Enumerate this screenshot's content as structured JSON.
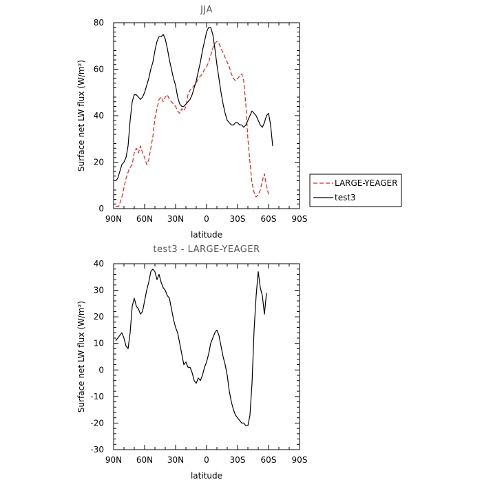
{
  "chart_data": [
    {
      "type": "line",
      "title": "JJA",
      "xlabel": "latitude",
      "ylabel": "Surface net LW flux (W/m²)",
      "x_ticks": [
        "90N",
        "60N",
        "30N",
        "0",
        "30S",
        "60S",
        "90S"
      ],
      "x_tick_values": [
        90,
        60,
        30,
        0,
        -30,
        -60,
        -90
      ],
      "xlim": [
        90,
        -90
      ],
      "ylim": [
        0,
        80
      ],
      "y_ticks": [
        0,
        20,
        40,
        60,
        80
      ],
      "legend": {
        "placement": "outside-right",
        "entries": [
          "LARGE-YEAGER",
          "test3"
        ]
      },
      "series": [
        {
          "name": "LARGE-YEAGER",
          "color": "#e02020",
          "style": "dashed",
          "points": [
            [
              88,
              1
            ],
            [
              85,
              1
            ],
            [
              82,
              5
            ],
            [
              80,
              9
            ],
            [
              78,
              13
            ],
            [
              75,
              17
            ],
            [
              72,
              19
            ],
            [
              70,
              24
            ],
            [
              68,
              26
            ],
            [
              66,
              24
            ],
            [
              64,
              27
            ],
            [
              62,
              24
            ],
            [
              60,
              22
            ],
            [
              58,
              19
            ],
            [
              56,
              21
            ],
            [
              54,
              26
            ],
            [
              52,
              31
            ],
            [
              50,
              39
            ],
            [
              48,
              43
            ],
            [
              46,
              47
            ],
            [
              44,
              48
            ],
            [
              42,
              46
            ],
            [
              40,
              48
            ],
            [
              38,
              49
            ],
            [
              36,
              47
            ],
            [
              34,
              46
            ],
            [
              32,
              45
            ],
            [
              30,
              44
            ],
            [
              28,
              42
            ],
            [
              26,
              41
            ],
            [
              24,
              43
            ],
            [
              22,
              42
            ],
            [
              20,
              44
            ],
            [
              18,
              49
            ],
            [
              16,
              51
            ],
            [
              14,
              52
            ],
            [
              12,
              53
            ],
            [
              10,
              54
            ],
            [
              8,
              56
            ],
            [
              6,
              57
            ],
            [
              4,
              58
            ],
            [
              2,
              60
            ],
            [
              0,
              61
            ],
            [
              -2,
              63
            ],
            [
              -4,
              66
            ],
            [
              -6,
              69
            ],
            [
              -8,
              71
            ],
            [
              -10,
              72
            ],
            [
              -12,
              71
            ],
            [
              -14,
              69
            ],
            [
              -16,
              67
            ],
            [
              -18,
              65
            ],
            [
              -20,
              63
            ],
            [
              -22,
              61
            ],
            [
              -24,
              58
            ],
            [
              -26,
              56
            ],
            [
              -28,
              55
            ],
            [
              -30,
              56
            ],
            [
              -32,
              57
            ],
            [
              -34,
              58
            ],
            [
              -36,
              55
            ],
            [
              -38,
              45
            ],
            [
              -40,
              30
            ],
            [
              -42,
              20
            ],
            [
              -44,
              11
            ],
            [
              -46,
              7
            ],
            [
              -48,
              5
            ],
            [
              -50,
              6
            ],
            [
              -52,
              8
            ],
            [
              -54,
              12
            ],
            [
              -56,
              15
            ],
            [
              -58,
              10
            ],
            [
              -60,
              6
            ]
          ]
        },
        {
          "name": "test3",
          "color": "#000000",
          "style": "solid",
          "points": [
            [
              88,
              12
            ],
            [
              86,
              13
            ],
            [
              84,
              16
            ],
            [
              82,
              19
            ],
            [
              80,
              20
            ],
            [
              78,
              22
            ],
            [
              76,
              27
            ],
            [
              74,
              38
            ],
            [
              72,
              46
            ],
            [
              70,
              49
            ],
            [
              68,
              49
            ],
            [
              66,
              48
            ],
            [
              64,
              47
            ],
            [
              62,
              48
            ],
            [
              60,
              50
            ],
            [
              58,
              53
            ],
            [
              56,
              56
            ],
            [
              54,
              60
            ],
            [
              52,
              63
            ],
            [
              50,
              68
            ],
            [
              48,
              72
            ],
            [
              46,
              74
            ],
            [
              44,
              74
            ],
            [
              42,
              75
            ],
            [
              40,
              73
            ],
            [
              38,
              69
            ],
            [
              36,
              64
            ],
            [
              34,
              60
            ],
            [
              32,
              56
            ],
            [
              30,
              53
            ],
            [
              28,
              48
            ],
            [
              26,
              45
            ],
            [
              24,
              44
            ],
            [
              22,
              44
            ],
            [
              20,
              45
            ],
            [
              18,
              46
            ],
            [
              16,
              47
            ],
            [
              14,
              49
            ],
            [
              12,
              52
            ],
            [
              10,
              55
            ],
            [
              8,
              59
            ],
            [
              6,
              63
            ],
            [
              4,
              68
            ],
            [
              2,
              72
            ],
            [
              0,
              76
            ],
            [
              -2,
              78
            ],
            [
              -4,
              78
            ],
            [
              -6,
              75
            ],
            [
              -8,
              69
            ],
            [
              -10,
              62
            ],
            [
              -12,
              56
            ],
            [
              -14,
              50
            ],
            [
              -16,
              45
            ],
            [
              -18,
              41
            ],
            [
              -20,
              38
            ],
            [
              -22,
              37
            ],
            [
              -24,
              36
            ],
            [
              -26,
              36
            ],
            [
              -28,
              37
            ],
            [
              -30,
              37
            ],
            [
              -32,
              36
            ],
            [
              -34,
              36
            ],
            [
              -36,
              35
            ],
            [
              -38,
              36
            ],
            [
              -40,
              38
            ],
            [
              -42,
              40
            ],
            [
              -44,
              42
            ],
            [
              -46,
              41
            ],
            [
              -48,
              40
            ],
            [
              -50,
              38
            ],
            [
              -52,
              36
            ],
            [
              -54,
              35
            ],
            [
              -56,
              37
            ],
            [
              -58,
              40
            ],
            [
              -60,
              41
            ],
            [
              -62,
              36
            ],
            [
              -64,
              27
            ]
          ]
        }
      ]
    },
    {
      "type": "line",
      "title": "test3 - LARGE-YEAGER",
      "xlabel": "latitude",
      "ylabel": "Surface net LW flux (W/m²)",
      "x_ticks": [
        "90N",
        "60N",
        "30N",
        "0",
        "30S",
        "60S",
        "90S"
      ],
      "x_tick_values": [
        90,
        60,
        30,
        0,
        -30,
        -60,
        -90
      ],
      "xlim": [
        90,
        -90
      ],
      "ylim": [
        -30,
        40
      ],
      "y_ticks": [
        -30,
        -20,
        -10,
        0,
        10,
        20,
        30,
        40
      ],
      "series": [
        {
          "color": "#000000",
          "style": "solid",
          "points": [
            [
              88,
              11
            ],
            [
              86,
              12
            ],
            [
              84,
              13
            ],
            [
              82,
              14
            ],
            [
              80,
              12
            ],
            [
              78,
              9
            ],
            [
              76,
              8
            ],
            [
              74,
              14
            ],
            [
              72,
              24
            ],
            [
              70,
              27
            ],
            [
              68,
              24
            ],
            [
              66,
              23
            ],
            [
              64,
              21
            ],
            [
              62,
              22
            ],
            [
              60,
              26
            ],
            [
              58,
              30
            ],
            [
              56,
              33
            ],
            [
              54,
              37
            ],
            [
              52,
              38
            ],
            [
              50,
              37
            ],
            [
              48,
              34
            ],
            [
              46,
              36
            ],
            [
              44,
              33
            ],
            [
              42,
              31
            ],
            [
              40,
              30
            ],
            [
              38,
              28
            ],
            [
              36,
              27
            ],
            [
              34,
              23
            ],
            [
              32,
              19
            ],
            [
              30,
              16
            ],
            [
              28,
              14
            ],
            [
              26,
              10
            ],
            [
              24,
              6
            ],
            [
              22,
              2
            ],
            [
              20,
              3
            ],
            [
              18,
              1
            ],
            [
              16,
              1
            ],
            [
              14,
              -1
            ],
            [
              12,
              -4
            ],
            [
              10,
              -5
            ],
            [
              8,
              -3
            ],
            [
              6,
              -4
            ],
            [
              4,
              -2
            ],
            [
              2,
              1
            ],
            [
              0,
              3
            ],
            [
              -2,
              6
            ],
            [
              -4,
              10
            ],
            [
              -6,
              12
            ],
            [
              -8,
              14
            ],
            [
              -10,
              15
            ],
            [
              -12,
              13
            ],
            [
              -14,
              9
            ],
            [
              -16,
              5
            ],
            [
              -18,
              2
            ],
            [
              -20,
              -2
            ],
            [
              -22,
              -8
            ],
            [
              -24,
              -12
            ],
            [
              -26,
              -15
            ],
            [
              -28,
              -17
            ],
            [
              -30,
              -18
            ],
            [
              -32,
              -19
            ],
            [
              -34,
              -20
            ],
            [
              -36,
              -20
            ],
            [
              -38,
              -21
            ],
            [
              -40,
              -21
            ],
            [
              -42,
              -17
            ],
            [
              -44,
              -5
            ],
            [
              -46,
              15
            ],
            [
              -48,
              28
            ],
            [
              -50,
              37
            ],
            [
              -52,
              31
            ],
            [
              -54,
              28
            ],
            [
              -56,
              21
            ],
            [
              -58,
              29
            ]
          ]
        }
      ]
    }
  ]
}
